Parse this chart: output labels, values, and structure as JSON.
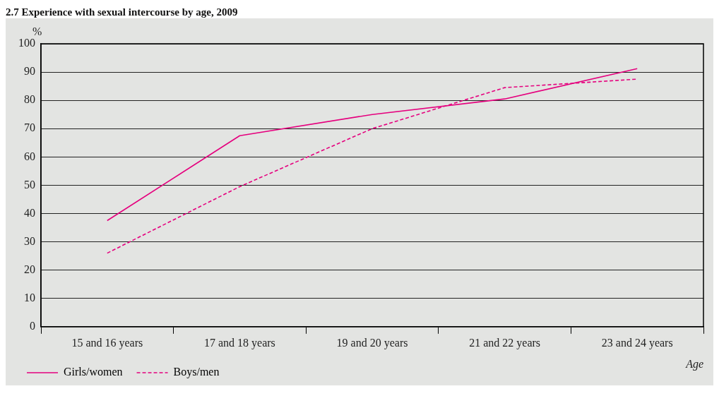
{
  "chart_data": {
    "type": "line",
    "title": "2.7  Experience with sexual intercourse by age, 2009",
    "ylabel": "%",
    "xlabel": "Age",
    "categories": [
      "15 and 16 years",
      "17 and 18 years",
      "19 and 20 years",
      "21 and 22 years",
      "23 and 24 years"
    ],
    "series": [
      {
        "name": "Girls/women",
        "color": "#e5007e",
        "line_style": "solid",
        "values": [
          37.5,
          67.5,
          75,
          80.5,
          91.2
        ]
      },
      {
        "name": "Boys/men",
        "color": "#e5007e",
        "line_style": "dashed",
        "values": [
          26,
          49.5,
          70,
          84.5,
          87.5
        ]
      }
    ],
    "ylim": [
      0,
      100
    ],
    "yticks": [
      0,
      10,
      20,
      30,
      40,
      50,
      60,
      70,
      80,
      90,
      100
    ],
    "grid": "y",
    "legend": "bottom left",
    "marker": "none"
  }
}
